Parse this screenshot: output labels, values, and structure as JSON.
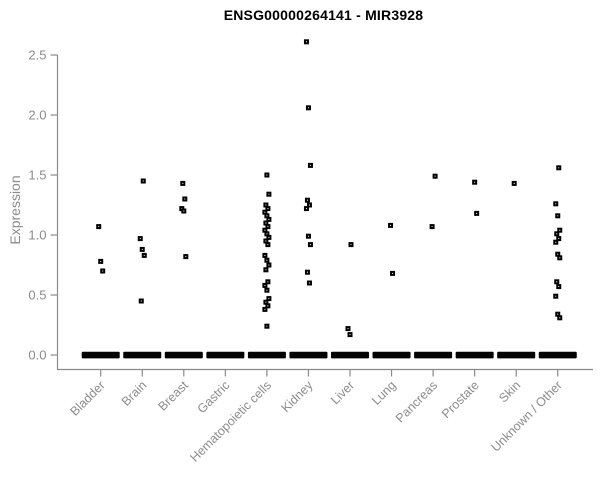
{
  "title": "ENSG00000264141 - MIR3928",
  "chart_data": {
    "type": "scatter",
    "subtype": "strip-plot",
    "title": "ENSG00000264141 - MIR3928",
    "xlabel": "",
    "ylabel": "Expression",
    "ylim": [
      0.0,
      2.5
    ],
    "yticks": [
      "0.0",
      "0.5",
      "1.0",
      "1.5",
      "2.0",
      "2.5"
    ],
    "grid": false,
    "legend": "none",
    "marker": "small-open-black-square",
    "zero_cluster_note": "each category shows a dense horizontal bar of overlapping points at expression 0.0",
    "colors": {
      "points": "#000000",
      "axis_line": "#8a8a8a",
      "tick_text": "#8c8c8c",
      "title_text": "#000000",
      "background": "#ffffff"
    },
    "categories": [
      "Bladder",
      "Brain",
      "Breast",
      "Gastric",
      "Hematopoietic cells",
      "Kidney",
      "Liver",
      "Lung",
      "Pancreas",
      "Prostate",
      "Skin",
      "Unknown / Other"
    ],
    "series": [
      {
        "category": "Bladder",
        "zero_bar": true,
        "values": [
          1.07,
          0.78,
          0.7
        ]
      },
      {
        "category": "Brain",
        "zero_bar": true,
        "values": [
          1.45,
          0.97,
          0.88,
          0.83,
          0.45
        ]
      },
      {
        "category": "Breast",
        "zero_bar": true,
        "values": [
          1.43,
          1.3,
          1.22,
          1.2,
          0.82
        ]
      },
      {
        "category": "Gastric",
        "zero_bar": true,
        "values": []
      },
      {
        "category": "Hematopoietic cells",
        "zero_bar": true,
        "values": [
          1.5,
          1.34,
          1.25,
          1.22,
          1.19,
          1.16,
          1.13,
          1.1,
          1.07,
          1.04,
          1.01,
          0.98,
          0.95,
          0.92,
          0.83,
          0.79,
          0.75,
          0.71,
          0.61,
          0.58,
          0.54,
          0.47,
          0.44,
          0.41,
          0.38,
          0.24
        ]
      },
      {
        "category": "Kidney",
        "zero_bar": true,
        "values": [
          2.61,
          2.06,
          1.58,
          1.29,
          1.25,
          1.22,
          0.99,
          0.92,
          0.69,
          0.6
        ]
      },
      {
        "category": "Liver",
        "zero_bar": true,
        "values": [
          0.92,
          0.22,
          0.17
        ]
      },
      {
        "category": "Lung",
        "zero_bar": true,
        "values": [
          1.08,
          0.68
        ]
      },
      {
        "category": "Pancreas",
        "zero_bar": true,
        "values": [
          1.49,
          1.07
        ]
      },
      {
        "category": "Prostate",
        "zero_bar": true,
        "values": [
          1.44,
          1.18
        ]
      },
      {
        "category": "Skin",
        "zero_bar": true,
        "values": [
          1.43
        ]
      },
      {
        "category": "Unknown / Other",
        "zero_bar": true,
        "values": [
          1.56,
          1.26,
          1.16,
          1.04,
          1.01,
          0.97,
          0.94,
          0.84,
          0.81,
          0.61,
          0.57,
          0.49,
          0.34,
          0.31
        ]
      }
    ]
  }
}
